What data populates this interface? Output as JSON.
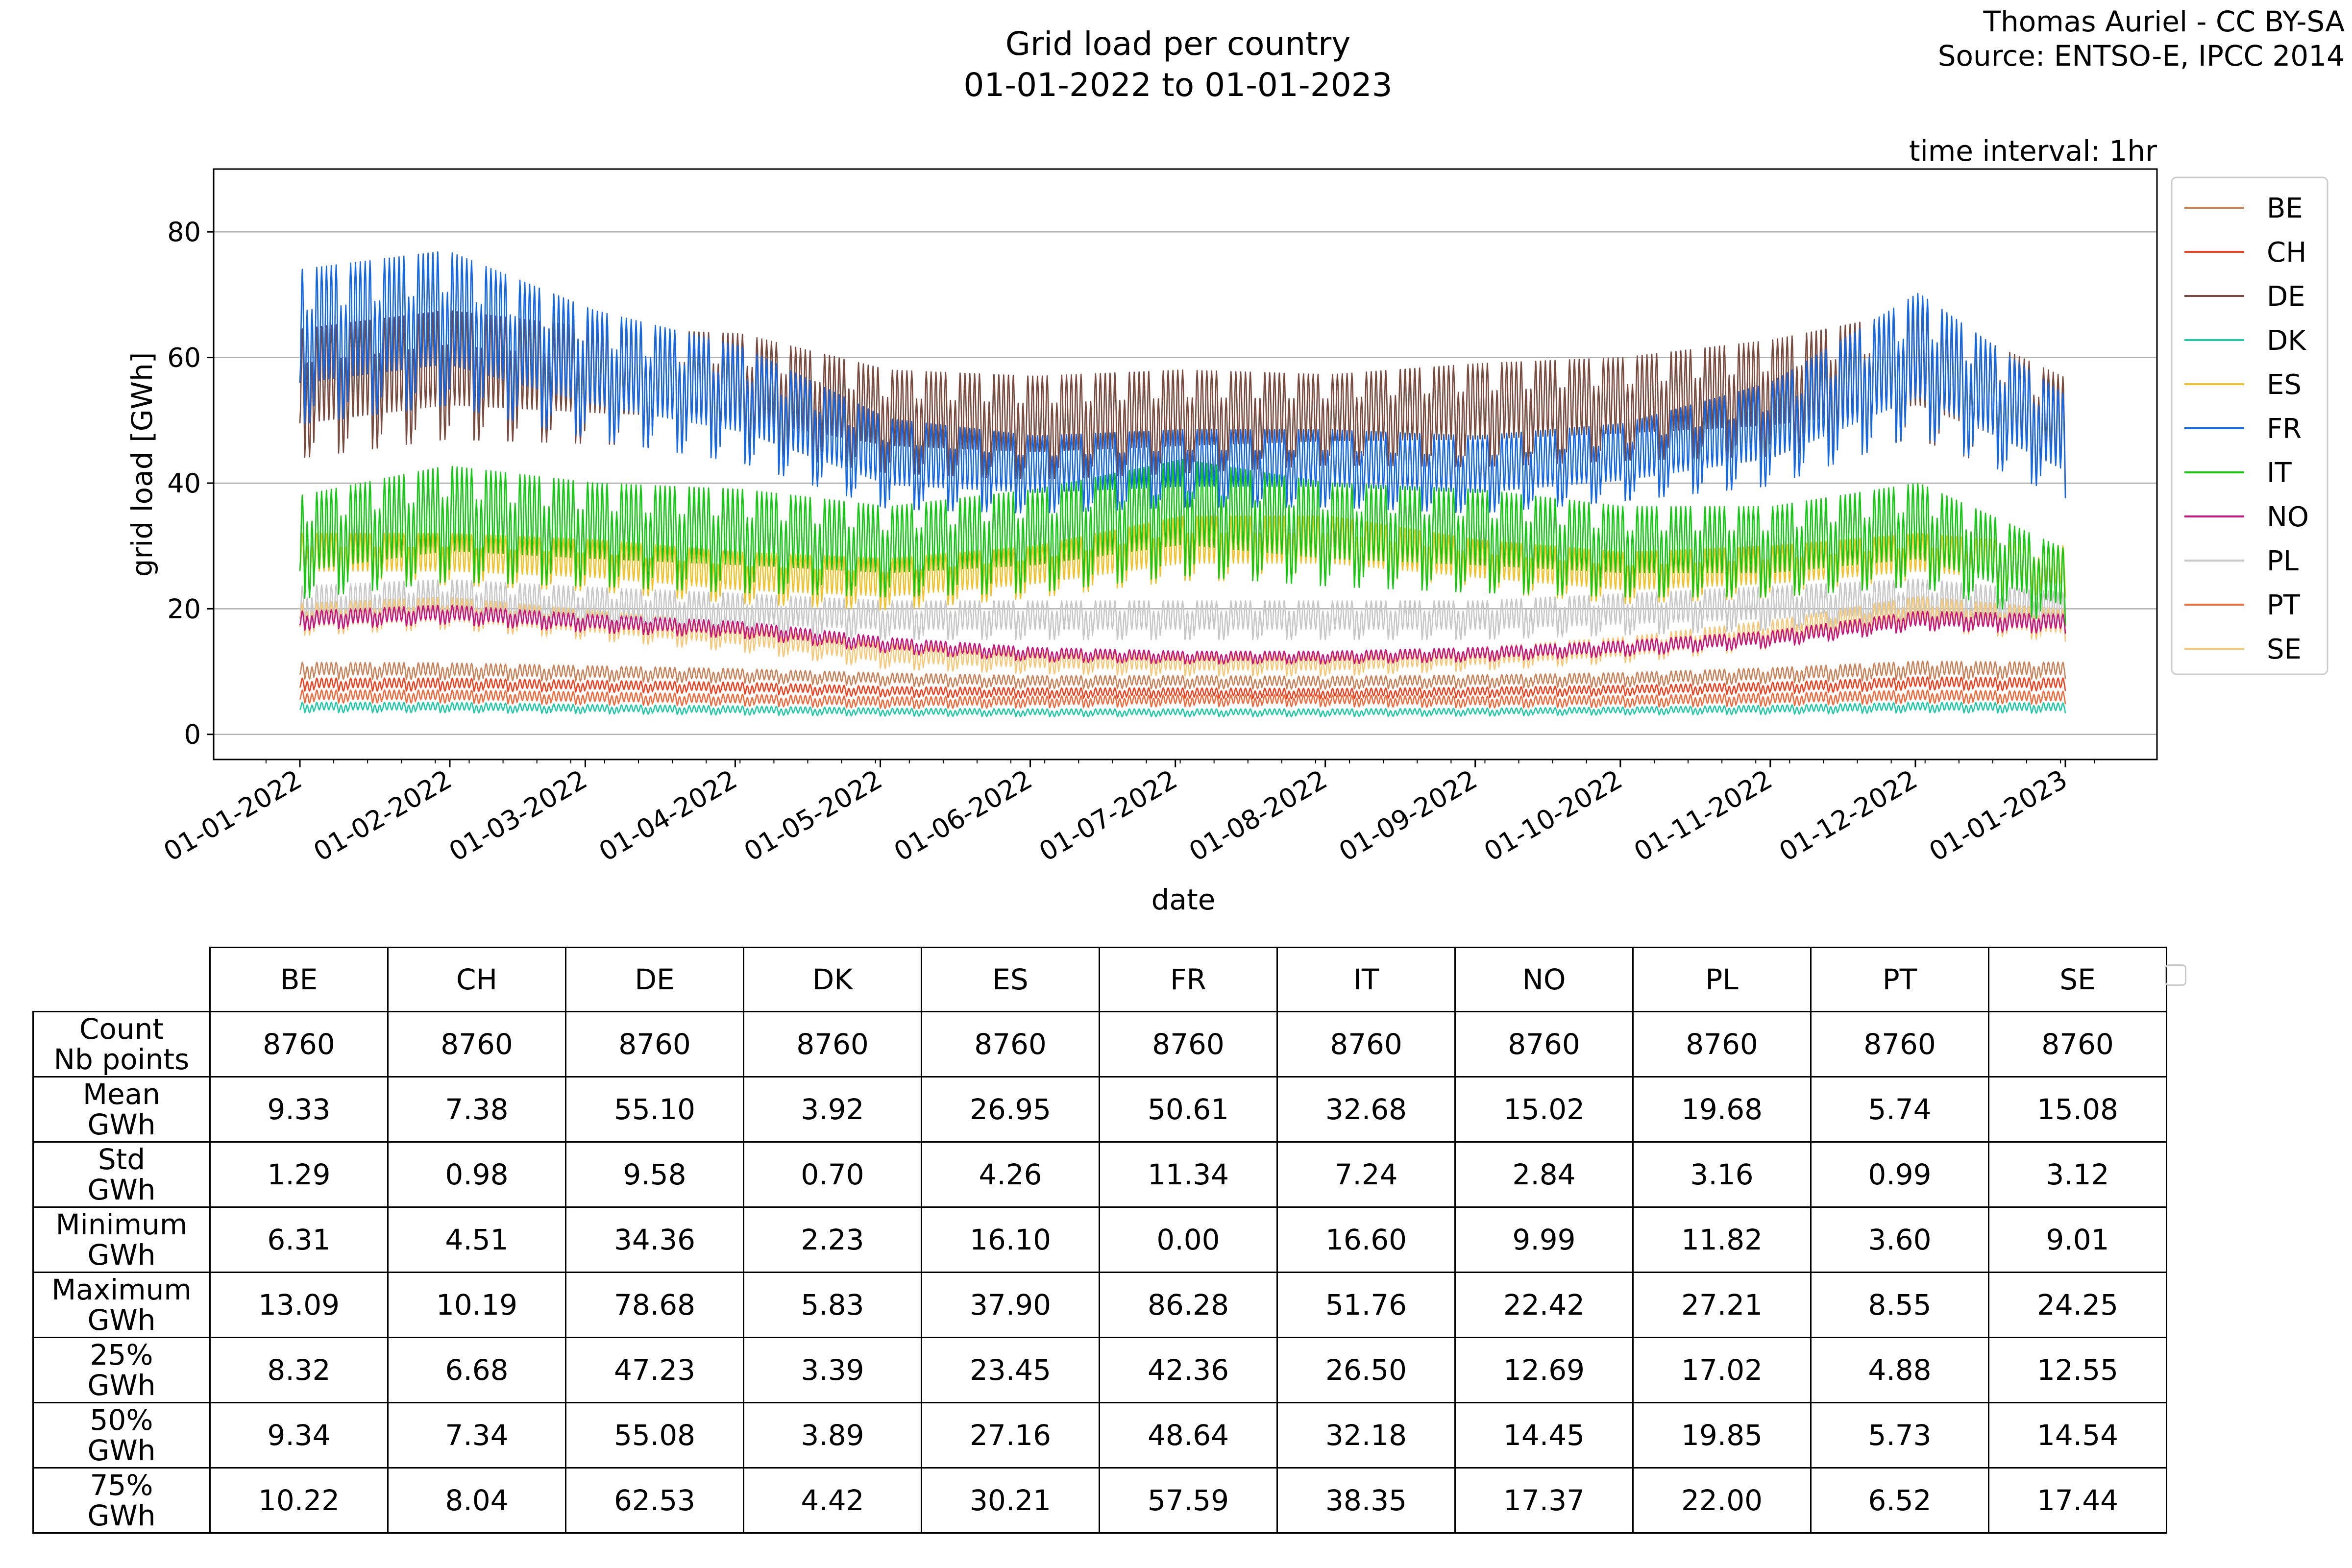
{
  "header": {
    "title_line1": "Grid load per country",
    "title_line2": "01-01-2022 to 01-01-2023",
    "credit_line1": "Thomas Auriel - CC BY-SA",
    "credit_line2": "Source: ENTSO-E, IPCC 2014"
  },
  "chart_data": {
    "type": "line",
    "title": "Grid load per country",
    "subtitle": "01-01-2022 to 01-01-2023",
    "annotation": "time interval: 1hr",
    "xlabel": "date",
    "ylabel": "grid load [GWh]",
    "xlim": [
      "2021-12-22",
      "2023-01-10"
    ],
    "ylim": [
      -4,
      90
    ],
    "yticks": [
      0,
      20,
      40,
      60,
      80
    ],
    "xticks": [
      "01-01-2022",
      "01-02-2022",
      "01-03-2022",
      "01-04-2022",
      "01-05-2022",
      "01-06-2022",
      "01-07-2022",
      "01-08-2022",
      "01-09-2022",
      "01-10-2022",
      "01-11-2022",
      "01-12-2022",
      "01-01-2023"
    ],
    "grid": "horizontal",
    "legend_position": "outside-right",
    "series_sampling": "approximate monthly representative values (hourly data condensed): base level and amplitude of daily/weekly oscillation",
    "series": [
      {
        "name": "BE",
        "color": "#c8835a",
        "base": [
          10.5,
          10.4,
          10.0,
          9.6,
          9.0,
          8.6,
          8.6,
          8.5,
          8.7,
          9.0,
          9.7,
          10.6,
          10.5
        ],
        "amp": [
          1.3,
          1.3,
          1.2,
          1.1,
          1.0,
          1.0,
          1.0,
          1.0,
          1.0,
          1.1,
          1.2,
          1.4,
          1.3
        ]
      },
      {
        "name": "CH",
        "color": "#f0401e",
        "base": [
          8.2,
          8.2,
          7.9,
          7.6,
          7.0,
          6.8,
          6.8,
          6.7,
          6.9,
          7.2,
          7.6,
          8.4,
          8.2
        ],
        "amp": [
          1.0,
          1.0,
          0.9,
          0.9,
          0.8,
          0.8,
          0.8,
          0.8,
          0.8,
          0.8,
          0.9,
          1.0,
          1.0
        ]
      },
      {
        "name": "DE",
        "color": "#7b4a3f",
        "base": [
          57,
          60,
          58,
          57,
          52,
          51,
          52,
          52,
          53,
          54,
          56,
          60,
          50
        ],
        "amp": [
          10,
          10,
          9,
          9,
          8,
          8,
          8,
          7,
          8,
          8,
          9,
          10,
          9
        ]
      },
      {
        "name": "DK",
        "color": "#1fc9a8",
        "base": [
          4.5,
          4.5,
          4.2,
          4.0,
          3.7,
          3.6,
          3.6,
          3.6,
          3.7,
          3.9,
          4.1,
          4.5,
          4.4
        ],
        "amp": [
          0.8,
          0.8,
          0.7,
          0.7,
          0.6,
          0.6,
          0.6,
          0.6,
          0.6,
          0.6,
          0.7,
          0.8,
          0.8
        ]
      },
      {
        "name": "ES",
        "color": "#f0c22c",
        "base": [
          29,
          29,
          28,
          26,
          25,
          27,
          31,
          31,
          28,
          26,
          27,
          29,
          27
        ],
        "amp": [
          4,
          4,
          4,
          4,
          4,
          4,
          5,
          5,
          4,
          4,
          4,
          4,
          4
        ]
      },
      {
        "name": "FR",
        "color": "#1468e5",
        "base": [
          65,
          68,
          60,
          55,
          45,
          43,
          44,
          44,
          43,
          45,
          50,
          62,
          48
        ],
        "amp": [
          12,
          12,
          10,
          9,
          7,
          6,
          6,
          6,
          6,
          6,
          8,
          11,
          8
        ]
      },
      {
        "name": "IT",
        "color": "#14c814",
        "base": [
          32,
          36,
          34,
          33,
          31,
          33,
          37,
          34,
          33,
          31,
          31,
          34,
          25
        ],
        "amp": [
          8,
          9,
          8,
          8,
          7,
          8,
          9,
          8,
          8,
          7,
          7,
          8,
          6
        ]
      },
      {
        "name": "NO",
        "color": "#c6157e",
        "base": [
          18.5,
          19.5,
          18,
          17,
          14.5,
          13,
          12.5,
          12.5,
          13,
          14,
          15.5,
          18.5,
          18
        ],
        "amp": [
          1.5,
          1.5,
          1.4,
          1.3,
          1.2,
          1.1,
          1.0,
          1.0,
          1.1,
          1.2,
          1.3,
          1.5,
          1.5
        ]
      },
      {
        "name": "PL",
        "color": "#c8c8c8",
        "base": [
          21,
          22,
          21,
          20,
          19,
          19,
          19,
          19,
          19,
          20,
          21,
          22,
          20
        ],
        "amp": [
          3.5,
          3.5,
          3.2,
          3.2,
          3.0,
          3.0,
          3.0,
          3.0,
          3.0,
          3.2,
          3.4,
          3.6,
          3.4
        ]
      },
      {
        "name": "PT",
        "color": "#f06a3c",
        "base": [
          6.3,
          6.3,
          6.0,
          5.7,
          5.3,
          5.4,
          5.6,
          5.6,
          5.4,
          5.5,
          5.8,
          6.3,
          6.1
        ],
        "amp": [
          1.0,
          1.0,
          1.0,
          0.9,
          0.9,
          0.9,
          0.9,
          0.9,
          0.9,
          0.9,
          1.0,
          1.0,
          1.0
        ]
      },
      {
        "name": "SE",
        "color": "#f5c97a",
        "base": [
          19,
          20,
          18,
          16,
          13,
          12,
          11.5,
          11.5,
          12.5,
          14,
          16.5,
          20,
          18
        ],
        "amp": [
          2.5,
          2.5,
          2.3,
          2.2,
          2.0,
          1.8,
          1.7,
          1.7,
          1.8,
          2.0,
          2.2,
          2.6,
          2.5
        ]
      }
    ]
  },
  "stats_table": {
    "columns": [
      "BE",
      "CH",
      "DE",
      "DK",
      "ES",
      "FR",
      "IT",
      "NO",
      "PL",
      "PT",
      "SE"
    ],
    "rows": [
      {
        "label1": "Count",
        "label2": "Nb points",
        "values": [
          "8760",
          "8760",
          "8760",
          "8760",
          "8760",
          "8760",
          "8760",
          "8760",
          "8760",
          "8760",
          "8760"
        ]
      },
      {
        "label1": "Mean",
        "label2": "GWh",
        "values": [
          "9.33",
          "7.38",
          "55.10",
          "3.92",
          "26.95",
          "50.61",
          "32.68",
          "15.02",
          "19.68",
          "5.74",
          "15.08"
        ]
      },
      {
        "label1": "Std",
        "label2": "GWh",
        "values": [
          "1.29",
          "0.98",
          "9.58",
          "0.70",
          "4.26",
          "11.34",
          "7.24",
          "2.84",
          "3.16",
          "0.99",
          "3.12"
        ]
      },
      {
        "label1": "Minimum",
        "label2": "GWh",
        "values": [
          "6.31",
          "4.51",
          "34.36",
          "2.23",
          "16.10",
          "0.00",
          "16.60",
          "9.99",
          "11.82",
          "3.60",
          "9.01"
        ]
      },
      {
        "label1": "Maximum",
        "label2": "GWh",
        "values": [
          "13.09",
          "10.19",
          "78.68",
          "5.83",
          "37.90",
          "86.28",
          "51.76",
          "22.42",
          "27.21",
          "8.55",
          "24.25"
        ]
      },
      {
        "label1": "25%",
        "label2": "GWh",
        "values": [
          "8.32",
          "6.68",
          "47.23",
          "3.39",
          "23.45",
          "42.36",
          "26.50",
          "12.69",
          "17.02",
          "4.88",
          "12.55"
        ]
      },
      {
        "label1": "50%",
        "label2": "GWh",
        "values": [
          "9.34",
          "7.34",
          "55.08",
          "3.89",
          "27.16",
          "48.64",
          "32.18",
          "14.45",
          "19.85",
          "5.73",
          "14.54"
        ]
      },
      {
        "label1": "75%",
        "label2": "GWh",
        "values": [
          "10.22",
          "8.04",
          "62.53",
          "4.42",
          "30.21",
          "57.59",
          "38.35",
          "17.37",
          "22.00",
          "6.52",
          "17.44"
        ]
      }
    ]
  }
}
